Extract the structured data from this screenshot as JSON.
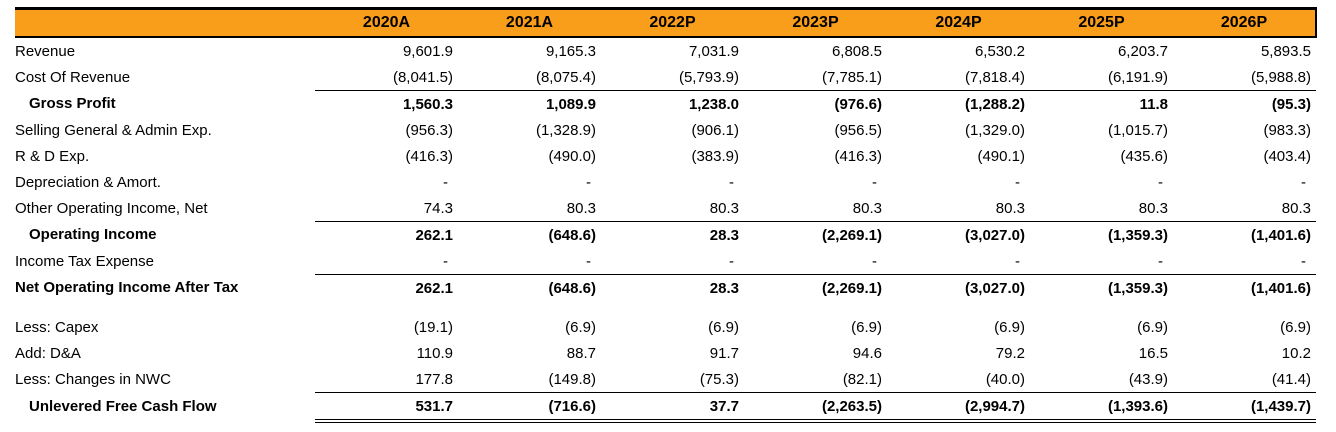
{
  "colors": {
    "header_bg": "#F99E1B",
    "header_text": "#000000",
    "actual_blue": "#4472C4",
    "projected_text": "#000000",
    "rule_black": "#000000"
  },
  "table": {
    "label_header": "",
    "columns": [
      "2020A",
      "2021A",
      "2022P",
      "2023P",
      "2024P",
      "2025P",
      "2026P"
    ],
    "rows": [
      {
        "label": "Revenue",
        "values": [
          "9,601.9",
          "9,165.3",
          "7,031.9",
          "6,808.5",
          "6,530.2",
          "6,203.7",
          "5,893.5"
        ],
        "bold": false,
        "indent": false,
        "blue": "first2",
        "top_border": false,
        "double_bottom": false
      },
      {
        "label": "Cost Of Revenue",
        "values": [
          "(8,041.5)",
          "(8,075.4)",
          "(5,793.9)",
          "(7,785.1)",
          "(7,818.4)",
          "(6,191.9)",
          "(5,988.8)"
        ],
        "bold": false,
        "indent": false,
        "blue": "first2",
        "top_border": false,
        "double_bottom": false
      },
      {
        "label": "Gross Profit",
        "values": [
          "1,560.3",
          "1,089.9",
          "1,238.0",
          "(976.6)",
          "(1,288.2)",
          "11.8",
          "(95.3)"
        ],
        "bold": true,
        "indent": true,
        "blue": "first2",
        "top_border": true,
        "double_bottom": false
      },
      {
        "label": "Selling General & Admin Exp.",
        "values": [
          "(956.3)",
          "(1,328.9)",
          "(906.1)",
          "(956.5)",
          "(1,329.0)",
          "(1,015.7)",
          "(983.3)"
        ],
        "bold": false,
        "indent": false,
        "blue": "first2",
        "top_border": false,
        "double_bottom": false
      },
      {
        "label": "R & D Exp.",
        "values": [
          "(416.3)",
          "(490.0)",
          "(383.9)",
          "(416.3)",
          "(490.1)",
          "(435.6)",
          "(403.4)"
        ],
        "bold": false,
        "indent": false,
        "blue": "first2",
        "top_border": false,
        "double_bottom": false
      },
      {
        "label": "Depreciation & Amort.",
        "values": [
          "-",
          "-",
          "-",
          "-",
          "-",
          "-",
          "-"
        ],
        "bold": false,
        "indent": false,
        "blue": "first2",
        "top_border": false,
        "double_bottom": false
      },
      {
        "label": "Other Operating Income, Net",
        "values": [
          "74.3",
          "80.3",
          "80.3",
          "80.3",
          "80.3",
          "80.3",
          "80.3"
        ],
        "bold": false,
        "indent": false,
        "blue": "first2",
        "top_border": false,
        "double_bottom": false
      },
      {
        "label": "Operating Income",
        "values": [
          "262.1",
          "(648.6)",
          "28.3",
          "(2,269.1)",
          "(3,027.0)",
          "(1,359.3)",
          "(1,401.6)"
        ],
        "bold": true,
        "indent": true,
        "blue": "first2",
        "top_border": true,
        "double_bottom": false
      },
      {
        "label": "Income Tax Expense",
        "values": [
          "-",
          "-",
          "-",
          "-",
          "-",
          "-",
          "-"
        ],
        "bold": false,
        "indent": false,
        "blue": "all",
        "top_border": false,
        "double_bottom": false
      },
      {
        "label": "Net Operating Income After Tax",
        "values": [
          "262.1",
          "(648.6)",
          "28.3",
          "(2,269.1)",
          "(3,027.0)",
          "(1,359.3)",
          "(1,401.6)"
        ],
        "bold": true,
        "indent": false,
        "blue": "first2",
        "top_border": true,
        "double_bottom": false
      },
      {
        "spacer": true
      },
      {
        "label": "Less: Capex",
        "values": [
          "(19.1)",
          "(6.9)",
          "(6.9)",
          "(6.9)",
          "(6.9)",
          "(6.9)",
          "(6.9)"
        ],
        "bold": false,
        "indent": false,
        "blue": "all",
        "top_border": false,
        "double_bottom": false
      },
      {
        "label": "Add: D&A",
        "values": [
          "110.9",
          "88.7",
          "91.7",
          "94.6",
          "79.2",
          "16.5",
          "10.2"
        ],
        "bold": false,
        "indent": false,
        "blue": "first2",
        "top_border": false,
        "double_bottom": false
      },
      {
        "label": "Less: Changes in NWC",
        "values": [
          "177.8",
          "(149.8)",
          "(75.3)",
          "(82.1)",
          "(40.0)",
          "(43.9)",
          "(41.4)"
        ],
        "bold": false,
        "indent": false,
        "blue": "first2",
        "top_border": false,
        "double_bottom": false
      },
      {
        "label": "Unlevered Free Cash Flow",
        "values": [
          "531.7",
          "(716.6)",
          "37.7",
          "(2,263.5)",
          "(2,994.7)",
          "(1,393.6)",
          "(1,439.7)"
        ],
        "bold": true,
        "indent": true,
        "blue": "first2",
        "top_border": true,
        "double_bottom": true
      }
    ]
  }
}
